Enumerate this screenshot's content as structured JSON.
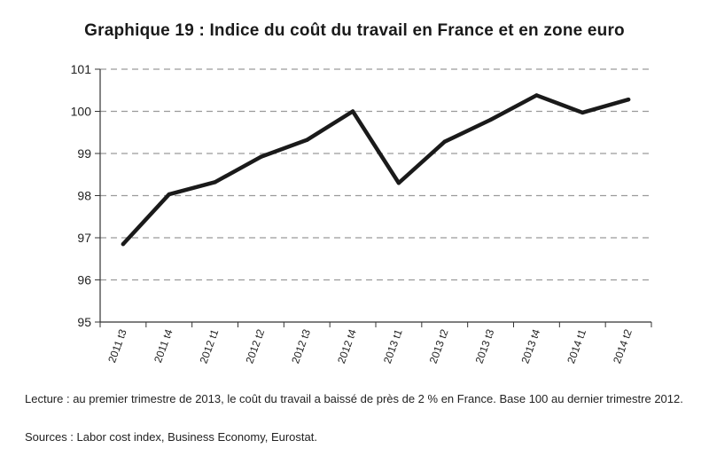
{
  "chart_data": {
    "type": "line",
    "title": "Graphique 19 : Indice du coût du travail en France et en zone euro",
    "categories": [
      "2011 t3",
      "2011 t4",
      "2012 t1",
      "2012 t2",
      "2012 t3",
      "2012 t4",
      "2013 t1",
      "2013 t2",
      "2013 t3",
      "2013 t4",
      "2014 t1",
      "2014 t2"
    ],
    "series": [
      {
        "values": [
          96.85,
          98.03,
          98.32,
          98.92,
          99.32,
          100.0,
          98.3,
          99.28,
          99.8,
          100.38,
          99.97,
          100.28
        ]
      }
    ],
    "yticks": [
      95,
      96,
      97,
      98,
      99,
      100,
      101
    ],
    "ylim": [
      95,
      101
    ],
    "grid": "horizontal dashed",
    "line_color": "#1a1a1a",
    "grid_color": "#9a9a9a"
  },
  "footer": {
    "note": "Lecture : au premier trimestre de 2013, le coût du travail a baissé de près de 2 % en France. Base 100 au dernier trimestre 2012.",
    "sources": "Sources : Labor cost index, Business Economy, Eurostat."
  }
}
